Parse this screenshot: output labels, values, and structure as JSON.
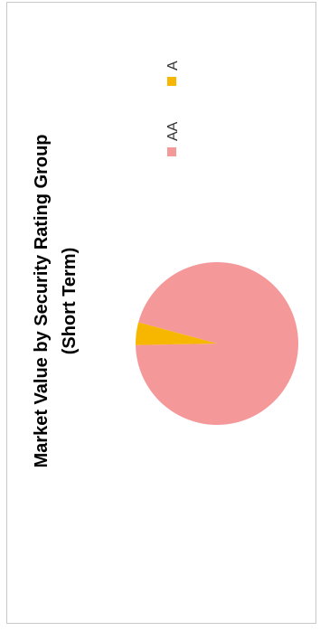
{
  "chart_data": {
    "type": "pie",
    "title": "Market Value by Security Rating Group",
    "subtitle": "(Short Term)",
    "categories": [
      "AA",
      "A"
    ],
    "values": [
      95.5,
      4.5
    ],
    "colors": [
      "#f4989a",
      "#f7b700"
    ],
    "legend_position": "right"
  }
}
